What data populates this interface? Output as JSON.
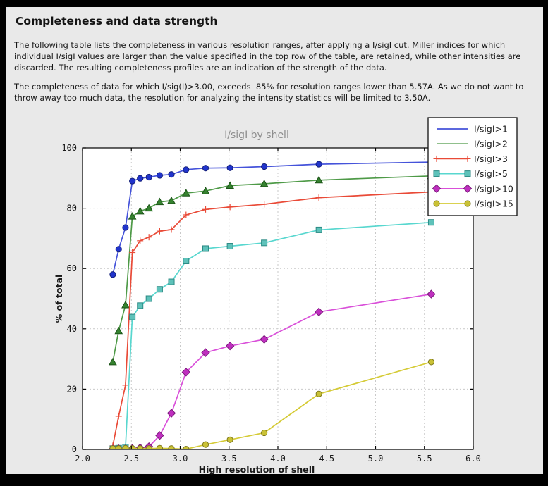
{
  "page": {
    "title": "Completeness and data strength",
    "paragraphs": [
      "The following table lists the completeness in various resolution ranges, after applying a I/sigI cut. Miller indices for which individual I/sigI values are larger than the value specified in the top row of the table, are retained, while other intensities are discarded. The resulting completeness profiles are an indication of the strength of the data.",
      "The completeness of data for which I/sig(I)>3.00, exceeds  85% for resolution ranges lower than 5.57A. As we do not want to throw away too much data, the resolution for analyzing the intensity statistics will be limited to 3.50A."
    ]
  },
  "colors": {
    "page_background": "#e9e9e9",
    "outer_frame": "#000000",
    "plot_background": "#ffffff",
    "gridline": "#c9c9c9",
    "axis_frame": "#000000",
    "chart_title_text": "#8e8e8e",
    "legend_background": "#ffffff",
    "legend_border": "#111111"
  },
  "chart_data": {
    "type": "line",
    "title": "I/sigI by shell",
    "xlabel": "High resolution of shell",
    "ylabel": "% of total",
    "xlim": [
      2.0,
      6.0
    ],
    "ylim": [
      0,
      100
    ],
    "xticks": [
      2.0,
      2.5,
      3.0,
      3.5,
      4.0,
      4.5,
      5.0,
      5.5,
      6.0
    ],
    "yticks": [
      0,
      20,
      40,
      60,
      80,
      100
    ],
    "grid": true,
    "legend_position": "upper-right-overlapping",
    "x": [
      2.31,
      2.37,
      2.44,
      2.51,
      2.59,
      2.68,
      2.79,
      2.91,
      3.06,
      3.26,
      3.51,
      3.86,
      4.42,
      5.57
    ],
    "series": [
      {
        "name": "I/sigI>1",
        "marker": "circle",
        "legend_marker": false,
        "line_color": "#4553da",
        "marker_fill": "#2134cc",
        "marker_edge": "#15207a",
        "values": [
          58.0,
          66.4,
          73.6,
          89.0,
          89.9,
          90.3,
          90.9,
          91.2,
          92.8,
          93.3,
          93.4,
          93.8,
          94.6,
          95.3
        ]
      },
      {
        "name": "I/sigI>2",
        "marker": "triangle",
        "legend_marker": false,
        "line_color": "#4e9a47",
        "marker_fill": "#35822f",
        "marker_edge": "#1c5418",
        "values": [
          29.0,
          39.3,
          47.9,
          77.3,
          79.0,
          80.0,
          82.1,
          82.5,
          85.0,
          85.7,
          87.5,
          88.1,
          89.3,
          90.7
        ]
      },
      {
        "name": "I/sigI>3",
        "marker": "plus",
        "legend_marker": true,
        "line_color": "#e94a37",
        "marker_fill": "#e63c2b",
        "marker_edge": "#e63c2b",
        "values": [
          1.2,
          11.0,
          21.3,
          65.3,
          69.2,
          70.4,
          72.4,
          72.9,
          77.8,
          79.6,
          80.4,
          81.3,
          83.5,
          85.4
        ]
      },
      {
        "name": "I/sigI>5",
        "marker": "square",
        "legend_marker": true,
        "line_color": "#58d7cf",
        "marker_fill": "#5ec2ba",
        "marker_edge": "#2b8a84",
        "values": [
          0.2,
          0.4,
          0.8,
          43.9,
          47.7,
          50.0,
          53.1,
          55.6,
          62.5,
          66.6,
          67.4,
          68.5,
          72.8,
          75.3
        ]
      },
      {
        "name": "I/sigI>10",
        "marker": "diamond",
        "legend_marker": true,
        "line_color": "#d94fd9",
        "marker_fill": "#bf2fbf",
        "marker_edge": "#7a197a",
        "values": [
          0.1,
          0.2,
          0.2,
          0.3,
          0.5,
          0.9,
          4.6,
          12.0,
          25.6,
          32.1,
          34.3,
          36.5,
          45.6,
          51.5
        ]
      },
      {
        "name": "I/sigI>15",
        "marker": "circle",
        "legend_marker": true,
        "line_color": "#d5cb37",
        "marker_fill": "#c9c135",
        "marker_edge": "#7f791d",
        "values": [
          0.3,
          0.3,
          0.4,
          0.3,
          0.3,
          0.3,
          0.4,
          0.3,
          0.1,
          1.6,
          3.2,
          5.5,
          18.4,
          29.0
        ]
      }
    ]
  }
}
